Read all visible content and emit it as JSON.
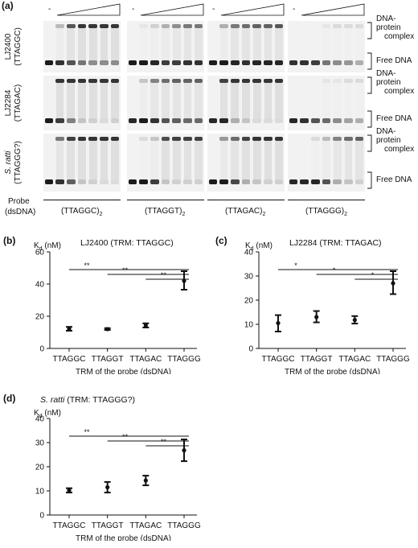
{
  "panel_a": {
    "tag": "(a)",
    "minus_sign": "-",
    "row_labels": [
      {
        "line1": "LJ2400",
        "line2": "(TTAGGC)",
        "italic": false
      },
      {
        "line1": "LJ2284",
        "line2": "(TTAGAC)",
        "italic": false
      },
      {
        "line1": "S. ratti",
        "line2": "(TTAGGG?)",
        "italic": true
      }
    ],
    "complex_label_1": "DNA-protein",
    "complex_label_2": "complex",
    "free_label": "Free DNA",
    "probe_label_1": "Probe",
    "probe_label_2": "(dsDNA)",
    "probe_names": [
      "(TTAGGC)",
      "(TTAGGT)",
      "(TTAGAC)",
      "(TTAGGG)"
    ],
    "probe_subscript": "2",
    "gel_intensity": [
      [
        [
          0.0,
          0.25,
          0.7,
          0.85,
          0.85,
          0.85,
          0.85
        ],
        [
          0.0,
          0.05,
          0.15,
          0.3,
          0.45,
          0.55,
          0.55
        ],
        [
          0.0,
          0.3,
          0.55,
          0.6,
          0.65,
          0.65,
          0.7
        ],
        [
          0.0,
          0.0,
          0.0,
          0.05,
          0.1,
          0.1,
          0.1
        ]
      ],
      [
        [
          0.0,
          0.85,
          0.85,
          0.85,
          0.85,
          0.85,
          0.85
        ],
        [
          0.0,
          0.2,
          0.5,
          0.6,
          0.65,
          0.65,
          0.65
        ],
        [
          0.0,
          0.8,
          0.85,
          0.85,
          0.85,
          0.85,
          0.85
        ],
        [
          0.0,
          0.0,
          0.0,
          0.05,
          0.05,
          0.1,
          0.1
        ]
      ],
      [
        [
          0.0,
          0.55,
          0.8,
          0.85,
          0.85,
          0.85,
          0.85
        ],
        [
          0.0,
          0.1,
          0.2,
          0.75,
          0.8,
          0.8,
          0.8
        ],
        [
          0.0,
          0.4,
          0.6,
          0.8,
          0.85,
          0.85,
          0.85
        ],
        [
          0.0,
          0.0,
          0.1,
          0.25,
          0.5,
          0.6,
          0.65
        ]
      ]
    ],
    "free_intensity": [
      [
        [
          0.95,
          0.85,
          0.7,
          0.55,
          0.45,
          0.45,
          0.45
        ],
        [
          0.95,
          0.95,
          0.9,
          0.8,
          0.8,
          0.85,
          0.85
        ],
        [
          0.95,
          0.95,
          0.9,
          0.85,
          0.9,
          0.9,
          0.9
        ],
        [
          0.85,
          0.85,
          0.8,
          0.55,
          0.45,
          0.4,
          0.3
        ]
      ],
      [
        [
          0.95,
          0.8,
          0.5,
          0.2,
          0.15,
          0.1,
          0.15
        ],
        [
          0.9,
          0.95,
          0.85,
          0.7,
          0.65,
          0.6,
          0.6
        ],
        [
          0.9,
          0.9,
          0.3,
          0.2,
          0.1,
          0.1,
          0.1
        ],
        [
          0.9,
          0.85,
          0.7,
          0.6,
          0.45,
          0.35,
          0.3
        ]
      ],
      [
        [
          0.95,
          0.85,
          0.65,
          0.2,
          0.15,
          0.1,
          0.1
        ],
        [
          0.95,
          0.95,
          0.8,
          0.2,
          0.15,
          0.15,
          0.15
        ],
        [
          0.95,
          0.95,
          0.75,
          0.3,
          0.2,
          0.15,
          0.15
        ],
        [
          0.9,
          0.9,
          0.9,
          0.7,
          0.3,
          0.2,
          0.15
        ]
      ]
    ]
  },
  "charts": {
    "b": {
      "tag": "(b)",
      "title": "LJ2400 (TRM: TTAGGC)",
      "title_italic_part": "",
      "kd_label": "K",
      "kd_sub": "d",
      "kd_unit": "(nM)"
    },
    "c": {
      "tag": "(c)",
      "title": "LJ2284 (TRM: TTAGAC)",
      "title_italic_part": "",
      "kd_label": "K",
      "kd_sub": "d",
      "kd_unit": "(nM)"
    },
    "d": {
      "tag": "(d)",
      "title": " (TRM: TTAGGG?)",
      "title_italic_part": "S. ratti",
      "kd_label": "K",
      "kd_sub": "d",
      "kd_unit": "(nM)"
    }
  },
  "chart_data": [
    {
      "id": "b",
      "type": "scatter",
      "title": "LJ2400 (TRM: TTAGGC)",
      "xlabel": "TRM of the probe (dsDNA)",
      "ylabel": "Kd (nM)",
      "categories": [
        "TTAGGC",
        "TTAGGT",
        "TTAGAC",
        "TTAGGG"
      ],
      "values": [
        12.2,
        12.0,
        14.3,
        42.0
      ],
      "err_low": [
        11.0,
        11.5,
        13.0,
        36.5
      ],
      "err_high": [
        13.4,
        12.6,
        15.6,
        48.0
      ],
      "ylim": [
        0,
        60
      ],
      "yticks": [
        0,
        20,
        40,
        60
      ],
      "significance": [
        {
          "from": "TTAGGC",
          "to": "TTAGGG",
          "label": "**"
        },
        {
          "from": "TTAGGT",
          "to": "TTAGGG",
          "label": "**"
        },
        {
          "from": "TTAGAC",
          "to": "TTAGGG",
          "label": "**"
        }
      ]
    },
    {
      "id": "c",
      "type": "scatter",
      "title": "LJ2284 (TRM: TTAGAC)",
      "xlabel": "TRM of the probe (dsDNA)",
      "ylabel": "Kd (nM)",
      "categories": [
        "TTAGGC",
        "TTAGGT",
        "TTAGAC",
        "TTAGGG"
      ],
      "values": [
        10.5,
        13.0,
        11.8,
        27.0
      ],
      "err_low": [
        7.0,
        10.8,
        10.3,
        22.5
      ],
      "err_high": [
        13.8,
        15.5,
        13.4,
        32.0
      ],
      "ylim": [
        0,
        40
      ],
      "yticks": [
        0,
        10,
        20,
        30,
        40
      ],
      "significance": [
        {
          "from": "TTAGGC",
          "to": "TTAGGG",
          "label": "*"
        },
        {
          "from": "TTAGGT",
          "to": "TTAGGG",
          "label": "*"
        },
        {
          "from": "TTAGAC",
          "to": "TTAGGG",
          "label": "*"
        }
      ]
    },
    {
      "id": "d",
      "type": "scatter",
      "title": "S. ratti (TRM: TTAGGG?)",
      "xlabel": "TRM of the probe (dsDNA)",
      "ylabel": "Kd (nM)",
      "categories": [
        "TTAGGC",
        "TTAGGT",
        "TTAGAC",
        "TTAGGG"
      ],
      "values": [
        10.2,
        11.5,
        14.3,
        26.8
      ],
      "err_low": [
        9.3,
        9.3,
        12.3,
        22.3
      ],
      "err_high": [
        11.1,
        13.7,
        16.3,
        31.3
      ],
      "ylim": [
        0,
        40
      ],
      "yticks": [
        0,
        10,
        20,
        30,
        40
      ],
      "significance": [
        {
          "from": "TTAGGC",
          "to": "TTAGGG",
          "label": "**"
        },
        {
          "from": "TTAGGT",
          "to": "TTAGGG",
          "label": "**"
        },
        {
          "from": "TTAGAC",
          "to": "TTAGGG",
          "label": "**"
        }
      ]
    }
  ]
}
